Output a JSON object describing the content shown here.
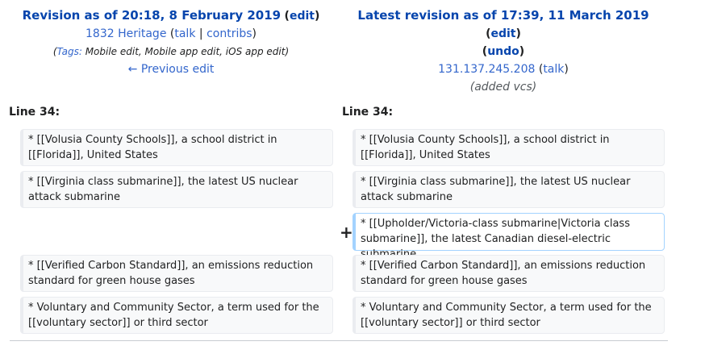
{
  "left": {
    "title": "Revision as of 20:18, 8 February 2019",
    "edit_label": "edit",
    "user": "1832 Heritage",
    "talk_label": "talk",
    "contribs_label": "contribs",
    "tags_label": "Tags:",
    "tags_value": "Mobile edit, Mobile app edit, iOS app edit",
    "prev_label": "← Previous edit",
    "line_label": "Line 34:"
  },
  "right": {
    "title": "Latest revision as of 17:39, 11 March 2019",
    "edit_label": "edit",
    "undo_label": "undo",
    "user": "131.137.245.208",
    "talk_label": "talk",
    "summary": "added vcs",
    "line_label": "Line 34:"
  },
  "diff": {
    "marker": "+",
    "left_lines": [
      "* [[Volusia County Schools]], a school district in [[Florida]], United States",
      "* [[Virginia class submarine]], the latest US nuclear attack submarine",
      "* [[Verified Carbon Standard]], an emissions reduction standard for green house gases",
      "* Voluntary and Community Sector, a term used for the [[voluntary sector]] or third sector"
    ],
    "right_lines": [
      "* [[Volusia County Schools]], a school district in [[Florida]], United States",
      "* [[Virginia class submarine]], the latest US nuclear attack submarine",
      "* [[Upholder/Victoria-class submarine|Victoria class submarine]], the latest Canadian diesel-electric submarine",
      "* [[Verified Carbon Standard]], an emissions reduction standard for green house gases",
      "* Voluntary and Community Sector, a term used for the [[voluntary sector]] or third sector"
    ]
  }
}
